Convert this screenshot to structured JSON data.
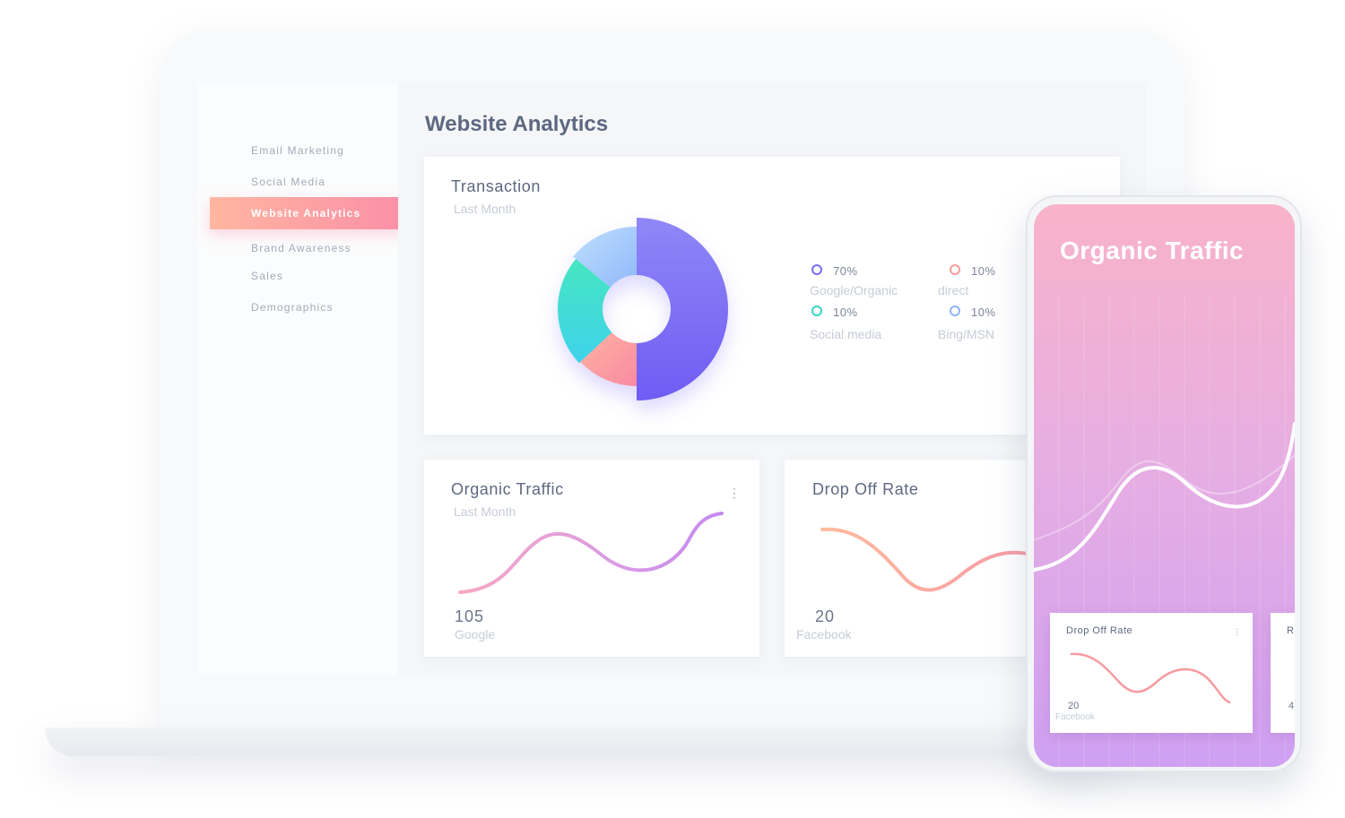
{
  "sidebar": {
    "items": [
      {
        "label": "Email Marketing"
      },
      {
        "label": "Social Media"
      },
      {
        "label": "Website Analytics",
        "active": true
      },
      {
        "label": "Brand Awareness"
      },
      {
        "label": "Sales"
      },
      {
        "label": "Demographics"
      }
    ]
  },
  "main": {
    "title": "Website Analytics",
    "transaction": {
      "title": "Transaction",
      "subtitle": "Last Month",
      "legend": [
        {
          "percent": "70%",
          "name": "Google/Organic",
          "color": "#7b6cf6"
        },
        {
          "percent": "10%",
          "name": "direct",
          "color": "#f99a9a"
        },
        {
          "percent": "10%",
          "name": "Social media",
          "color": "#35d6c8"
        },
        {
          "percent": "10%",
          "name": "Bing/MSN",
          "color": "#8fb4f5"
        }
      ]
    },
    "organic_traffic": {
      "title": "Organic Traffic",
      "subtitle": "Last Month",
      "value": "105",
      "value_label": "Google",
      "menu_icon": "kebab-menu-icon"
    },
    "drop_off": {
      "title": "Drop Off Rate",
      "value": "20",
      "value_label": "Facebook"
    }
  },
  "phone": {
    "title": "Organic Traffic",
    "card": {
      "title": "Drop Off Rate",
      "value": "20",
      "value_label": "Facebook",
      "menu_icon": "kebab-menu-icon"
    },
    "card2": {
      "title_fragment": "R",
      "value_fragment": "4"
    }
  },
  "chart_data": {
    "type": "pie",
    "categories": [
      "Google/Organic",
      "direct",
      "Social media",
      "Bing/MSN"
    ],
    "values": [
      70,
      10,
      10,
      10
    ]
  }
}
